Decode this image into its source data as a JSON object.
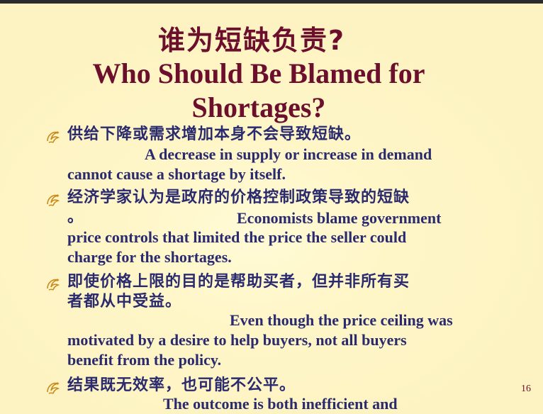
{
  "slide": {
    "title_cn": "谁为短缺负责?",
    "title_en": "Who Should Be Blamed for Shortages?",
    "page_number": "16",
    "bullet_icon": "ornate-bullet-icon",
    "colors": {
      "title": "#6b0f2d",
      "body": "#2a2a6e",
      "background": "#fdf3c2"
    }
  },
  "bullets": [
    {
      "cn": "供给下降或需求增加本身不会导致短缺。",
      "en_first": "A decrease in supply or increase in demand",
      "en_rest": "cannot cause a shortage by itself."
    },
    {
      "cn": "经济学家认为是政府的价格控制政策导致的短缺",
      "cn_cont": "。",
      "en_first": "Economists blame government",
      "en_rest1": "price controls that limited the price the seller could",
      "en_rest2": "charge for the shortages."
    },
    {
      "cn": "即使价格上限的目的是帮助买者，但并非所有买",
      "cn_cont": "者都从中受益。",
      "en_first": "Even though the price ceiling was",
      "en_rest1": "motivated by a desire to help buyers, not all buyers",
      "en_rest2": "benefit from the policy."
    },
    {
      "cn": "结果既无效率，也可能不公平。",
      "en_first": "The outcome is both inefficient and"
    }
  ]
}
